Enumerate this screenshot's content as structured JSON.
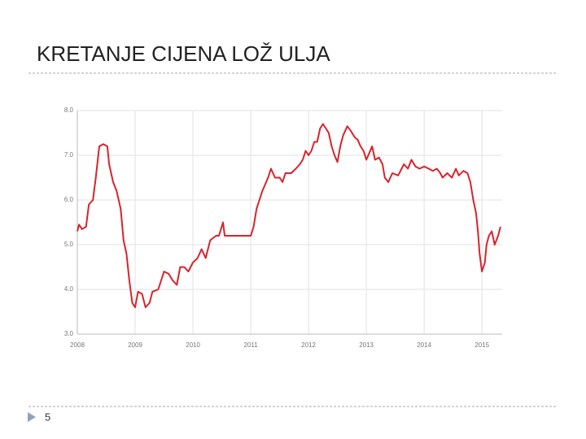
{
  "chart_data": {
    "type": "line",
    "title": "KRETANJE CIJENA LOŽ ULJA",
    "series": [
      {
        "color": "#d9232d",
        "x": [
          2008.0,
          2008.03,
          2008.08,
          2008.15,
          2008.2,
          2008.27,
          2008.32,
          2008.38,
          2008.45,
          2008.52,
          2008.55,
          2008.62,
          2008.68,
          2008.75,
          2008.8,
          2008.85,
          2008.9,
          2008.95,
          2009.0,
          2009.05,
          2009.12,
          2009.18,
          2009.25,
          2009.3,
          2009.4,
          2009.45,
          2009.5,
          2009.58,
          2009.65,
          2009.72,
          2009.78,
          2009.85,
          2009.92,
          2010.0,
          2010.08,
          2010.15,
          2010.22,
          2010.3,
          2010.4,
          2010.45,
          2010.52,
          2010.55,
          2010.65,
          2010.8,
          2011.0,
          2011.05,
          2011.1,
          2011.15,
          2011.2,
          2011.3,
          2011.35,
          2011.42,
          2011.5,
          2011.55,
          2011.6,
          2011.7,
          2011.78,
          2011.85,
          2011.9,
          2011.95,
          2012.0,
          2012.05,
          2012.1,
          2012.15,
          2012.2,
          2012.25,
          2012.3,
          2012.35,
          2012.4,
          2012.45,
          2012.5,
          2012.55,
          2012.6,
          2012.67,
          2012.73,
          2012.8,
          2012.85,
          2012.9,
          2012.95,
          2013.0,
          2013.05,
          2013.1,
          2013.15,
          2013.22,
          2013.28,
          2013.32,
          2013.38,
          2013.45,
          2013.55,
          2013.65,
          2013.72,
          2013.78,
          2013.85,
          2013.92,
          2014.0,
          2014.08,
          2014.15,
          2014.22,
          2014.28,
          2014.32,
          2014.4,
          2014.48,
          2014.55,
          2014.6,
          2014.68,
          2014.75,
          2014.8,
          2014.85,
          2014.9,
          2014.93,
          2014.96,
          2015.0,
          2015.05,
          2015.08,
          2015.12,
          2015.17,
          2015.22,
          2015.28,
          2015.32
        ],
        "values": [
          5.3,
          5.45,
          5.35,
          5.4,
          5.9,
          6.0,
          6.5,
          7.2,
          7.25,
          7.2,
          6.8,
          6.4,
          6.2,
          5.8,
          5.1,
          4.8,
          4.2,
          3.7,
          3.6,
          3.95,
          3.9,
          3.6,
          3.7,
          3.95,
          4.0,
          4.2,
          4.4,
          4.35,
          4.2,
          4.1,
          4.5,
          4.5,
          4.4,
          4.6,
          4.7,
          4.9,
          4.7,
          5.1,
          5.2,
          5.2,
          5.5,
          5.2,
          5.2,
          5.2,
          5.2,
          5.4,
          5.8,
          6.0,
          6.2,
          6.5,
          6.7,
          6.5,
          6.5,
          6.4,
          6.6,
          6.6,
          6.7,
          6.8,
          6.9,
          7.1,
          7.0,
          7.1,
          7.3,
          7.3,
          7.6,
          7.7,
          7.6,
          7.5,
          7.2,
          7.0,
          6.85,
          7.2,
          7.45,
          7.65,
          7.55,
          7.4,
          7.35,
          7.2,
          7.1,
          6.9,
          7.05,
          7.2,
          6.9,
          6.95,
          6.8,
          6.5,
          6.4,
          6.6,
          6.55,
          6.8,
          6.7,
          6.9,
          6.75,
          6.7,
          6.75,
          6.7,
          6.65,
          6.7,
          6.6,
          6.5,
          6.6,
          6.5,
          6.7,
          6.55,
          6.65,
          6.6,
          6.4,
          6.0,
          5.7,
          5.3,
          4.8,
          4.4,
          4.6,
          5.0,
          5.2,
          5.3,
          5.0,
          5.2,
          5.4
        ]
      }
    ],
    "xlim": [
      2008,
      2015.35
    ],
    "xticks": [
      2008,
      2009,
      2010,
      2011,
      2012,
      2013,
      2014,
      2015
    ],
    "ylim": [
      3,
      8
    ],
    "yticks": [
      {
        "value": 3,
        "label": "3.0"
      },
      {
        "value": 4,
        "label": "4.0"
      },
      {
        "value": 5,
        "label": "5.0"
      },
      {
        "value": 6,
        "label": "6.0"
      },
      {
        "value": 7,
        "label": "7.0"
      },
      {
        "value": 8,
        "label": "8.0"
      }
    ],
    "grid": true
  },
  "slide_number": "5"
}
